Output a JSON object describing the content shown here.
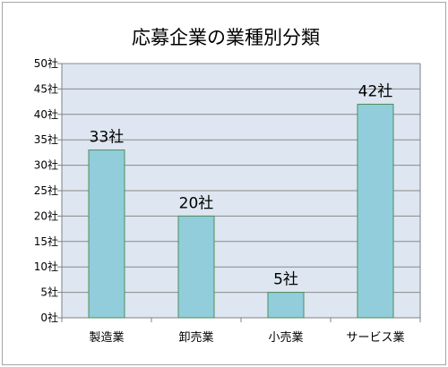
{
  "chart_data": {
    "type": "bar",
    "title": "応募企業の業種別分類",
    "categories": [
      "製造業",
      "卸売業",
      "小売業",
      "サービス業"
    ],
    "values": [
      33,
      20,
      5,
      42
    ],
    "data_labels": [
      "33社",
      "20社",
      "5社",
      "42社"
    ],
    "ylim": [
      0,
      50
    ],
    "y_ticks": [
      0,
      5,
      10,
      15,
      20,
      25,
      30,
      35,
      40,
      45,
      50
    ],
    "y_tick_labels": [
      "0社",
      "5社",
      "10社",
      "15社",
      "20社",
      "25社",
      "30社",
      "35社",
      "40社",
      "45社",
      "50社"
    ],
    "xlabel": "",
    "ylabel": "",
    "grid": true,
    "legend": "none",
    "colors": {
      "bar_fill": "#92cddc",
      "bar_stroke": "#4f8d5a",
      "plot_bg": "#dde6f1",
      "grid": "#8a8a8a",
      "axis": "#808080"
    }
  }
}
